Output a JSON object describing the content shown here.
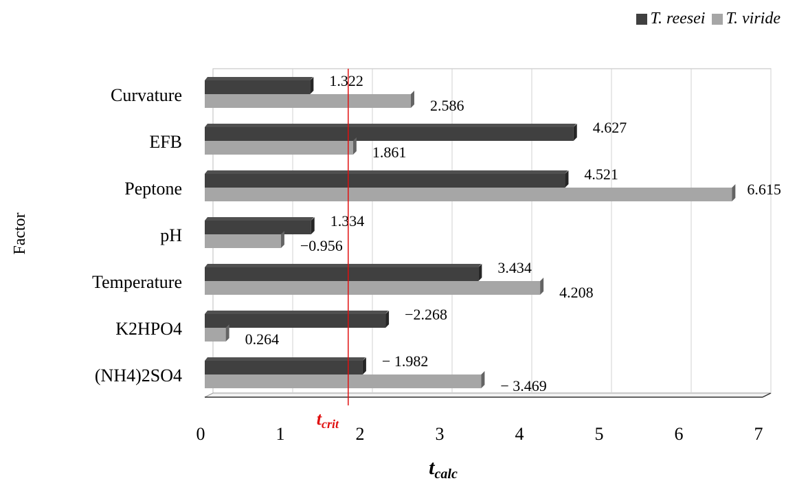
{
  "chart_data": {
    "type": "bar",
    "orientation": "horizontal",
    "categories": [
      "Curvature",
      "EFB",
      "Peptone",
      "pH",
      "Temperature",
      "K2HPO4",
      "(NH4)2SO4"
    ],
    "series": [
      {
        "name": "T. reesei",
        "color": "#404040",
        "values": [
          1.322,
          4.627,
          4.521,
          1.334,
          3.434,
          2.268,
          1.982
        ],
        "labels": [
          "1.322",
          "4.627",
          "4.521",
          "1.334",
          "3.434",
          "−2.268",
          "− 1.982"
        ]
      },
      {
        "name": "T. viride",
        "color": "#a6a6a6",
        "values": [
          2.586,
          1.861,
          6.615,
          0.956,
          4.208,
          0.264,
          3.469
        ],
        "labels": [
          "2.586",
          "1.861",
          "6.615",
          "−0.956",
          "4.208",
          "0.264",
          "− 3.469"
        ]
      }
    ],
    "xlim": [
      0,
      7
    ],
    "xticks": [
      "0",
      "1",
      "2",
      "3",
      "4",
      "5",
      "6",
      "7"
    ],
    "xlabel_main": "t",
    "xlabel_sub": "calc",
    "ylabel": "Factor",
    "critical_line": {
      "value": 1.8,
      "label_main": "t",
      "label_sub": "crit",
      "color": "#e01010"
    },
    "grid": true,
    "legend_position": "top-right"
  }
}
